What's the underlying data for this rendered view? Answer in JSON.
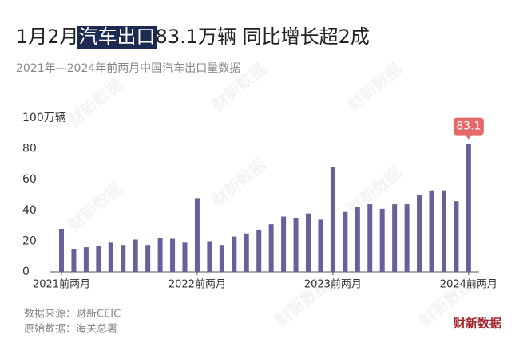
{
  "title_parts": [
    "1月2月",
    "汽车出口",
    "83.1万辆 同比增长超2成"
  ],
  "subtitle": "2021年—2024年前两月中国汽车出口量数据",
  "chart_data": {
    "type": "bar",
    "color": "#6b5f9b",
    "highlight_color": "#e46a6a",
    "categories": [
      "2021前两月",
      null,
      null,
      null,
      null,
      null,
      null,
      null,
      null,
      null,
      null,
      "2022前两月",
      null,
      null,
      null,
      null,
      null,
      null,
      null,
      null,
      null,
      null,
      "2023前两月",
      null,
      null,
      null,
      null,
      null,
      null,
      null,
      null,
      null,
      null,
      "2024前两月"
    ],
    "values": [
      28,
      15,
      16,
      17,
      19,
      17.5,
      21,
      17.5,
      22,
      21.5,
      19,
      48,
      20,
      17.5,
      23,
      25,
      27.5,
      31,
      36,
      35,
      38,
      34,
      68,
      39,
      42.5,
      44,
      41,
      44,
      44,
      50,
      53,
      53,
      46,
      83.1
    ],
    "ylim": [
      0,
      100
    ],
    "yticks": [
      0,
      20,
      40,
      60,
      80,
      {
        "value": 100,
        "label": "100万辆"
      }
    ],
    "grid": false
  },
  "source": "数据来源：财新CEIC",
  "origin": "原始数据：海关总署",
  "logo": "财新数据",
  "watermark": "财新数据"
}
